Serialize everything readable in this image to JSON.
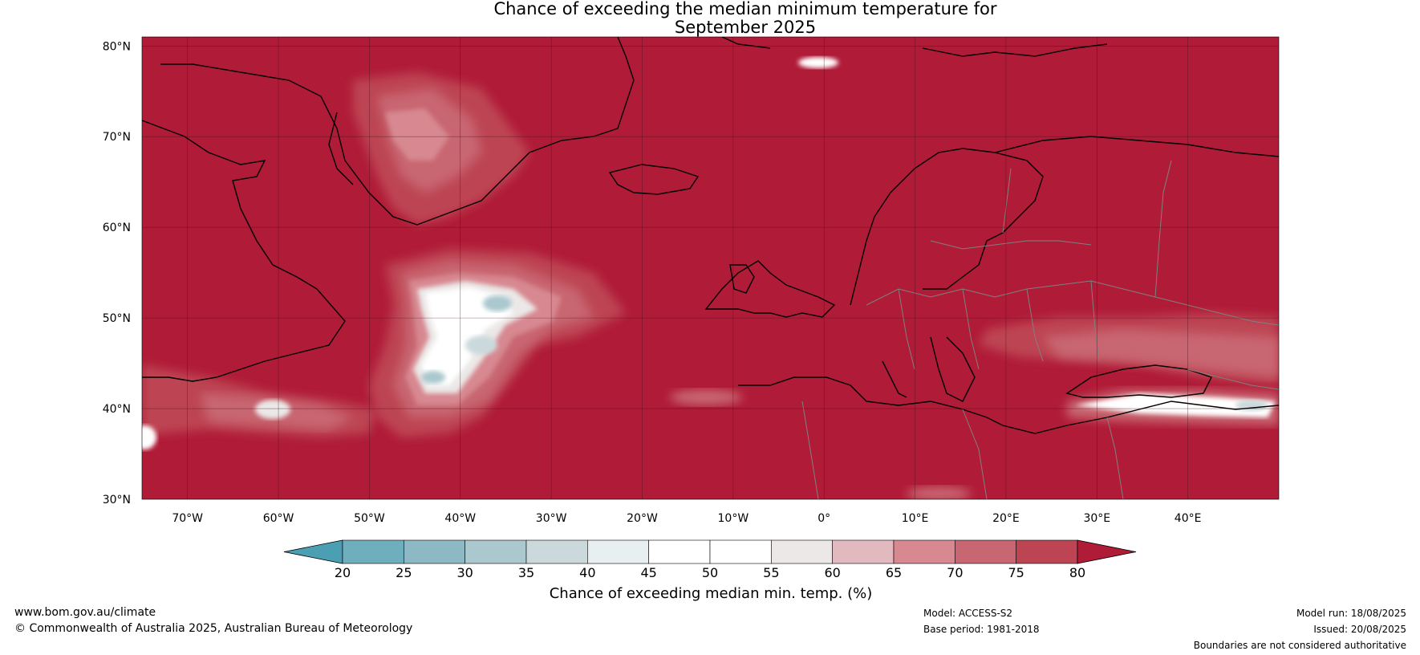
{
  "title": {
    "line1": "Chance of exceeding the median minimum temperature for",
    "line2": "September 2025"
  },
  "map": {
    "lat_labels": [
      "80°N",
      "70°N",
      "60°N",
      "50°N",
      "40°N",
      "30°N"
    ],
    "lon_labels": [
      "70°W",
      "60°W",
      "50°W",
      "40°W",
      "30°W",
      "20°W",
      "10°W",
      "0°",
      "10°E",
      "20°E",
      "30°E",
      "40°E"
    ],
    "background_color": "#b01b37"
  },
  "colorbar": {
    "ticks": [
      "20",
      "25",
      "30",
      "35",
      "40",
      "45",
      "50",
      "55",
      "60",
      "65",
      "70",
      "75",
      "80"
    ],
    "colors": [
      "#4a9fb3",
      "#6eaebd",
      "#8db9c5",
      "#aac8ce",
      "#cbd9dc",
      "#e8eff0",
      "#ffffff",
      "#ffffff",
      "#ebe8e7",
      "#e1b9bf",
      "#d78890",
      "#c86671",
      "#bd4452",
      "#b01b37"
    ],
    "title": "Chance of exceeding median min. temp. (%)"
  },
  "footer": {
    "website": "www.bom.gov.au/climate",
    "copyright": "© Commonwealth of Australia 2025, Australian Bureau of Meteorology",
    "model": "Model: ACCESS-S2",
    "base_period": "Base period: 1981-2018",
    "model_run": "Model run: 18/08/2025",
    "issued": "Issued: 20/08/2025",
    "disclaimer": "Boundaries are not considered authoritative"
  }
}
